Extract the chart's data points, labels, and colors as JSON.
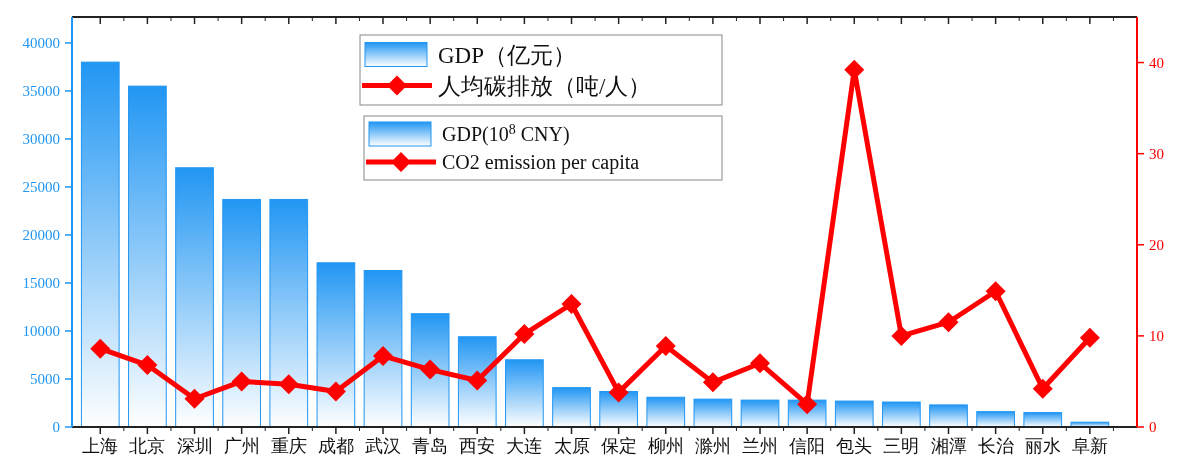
{
  "chart_data": {
    "type": "bar",
    "categories": [
      "上海",
      "北京",
      "深圳",
      "广州",
      "重庆",
      "成都",
      "武汉",
      "青岛",
      "西安",
      "大连",
      "太原",
      "保定",
      "柳州",
      "滁州",
      "兰州",
      "信阳",
      "包头",
      "三明",
      "湘潭",
      "长治",
      "丽水",
      "阜新"
    ],
    "series": [
      {
        "name": "GDP（亿元）",
        "color": "#2196f3",
        "values": [
          38000,
          35500,
          27000,
          23700,
          23700,
          17100,
          16300,
          11800,
          9400,
          7000,
          4100,
          3700,
          3100,
          2900,
          2800,
          2800,
          2700,
          2600,
          2300,
          1600,
          1500,
          500
        ]
      },
      {
        "name": "人均碳排放（吨/人）",
        "type": "line",
        "axis": "y2",
        "color": "#ff0000",
        "values": [
          8.6,
          6.8,
          3.1,
          5.0,
          4.7,
          3.9,
          7.8,
          6.3,
          5.1,
          10.2,
          13.5,
          3.8,
          8.9,
          4.9,
          7.0,
          2.5,
          39.2,
          10.0,
          11.5,
          14.9,
          4.2,
          9.8
        ]
      }
    ],
    "annotations": [
      "GDP(10$^{8}$ CNY)",
      "CO2 emission per capita"
    ],
    "ylim": [
      0,
      42700
    ],
    "yticks": [
      0,
      5000,
      10000,
      15000,
      20000,
      25000,
      30000,
      35000,
      40000
    ],
    "y2lim": [
      0,
      45
    ],
    "y2ticks": [
      0,
      10,
      20,
      30,
      40
    ],
    "marker": "diamond",
    "legend": "top",
    "grid": false
  }
}
